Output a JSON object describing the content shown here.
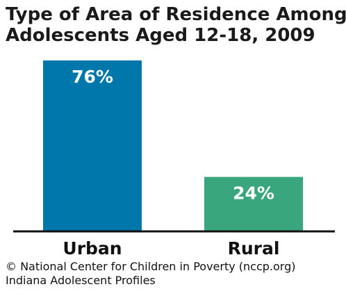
{
  "title_lines": [
    "Type of Area of Residence Among",
    "Adolescents Aged 12-18, 2009"
  ],
  "chart_data": {
    "type": "bar",
    "title": "Type of Area of Residence Among Adolescents Aged 12-18, 2009",
    "categories": [
      "Urban",
      "Rural"
    ],
    "values": [
      76,
      24
    ],
    "value_labels": [
      "76%",
      "24%"
    ],
    "colors": [
      "#0077aa",
      "#3aa67e"
    ],
    "ylim": [
      0,
      76
    ],
    "grid": false,
    "legend": "none"
  },
  "footer": {
    "copyright": "© National Center for Children in Poverty (nccp.org)",
    "source": "Indiana Adolescent Profiles"
  }
}
